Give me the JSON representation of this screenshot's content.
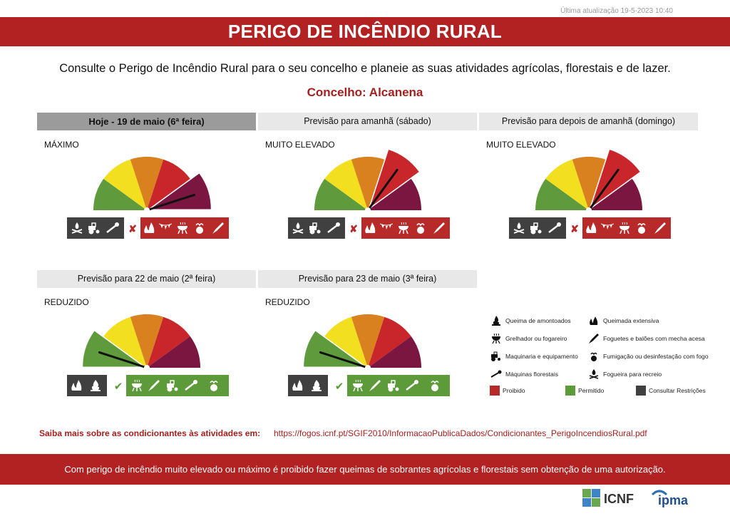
{
  "updated": "Última atualização 19-5-2023 10:40",
  "title": "PERIGO DE INCÊNDIO RURAL",
  "subtitle": "Consulte o Perigo de Incêndio Rural para o seu concelho e planeie as suas atividades agrícolas, florestais e de lazer.",
  "concelho": "Concelho: Alcanena",
  "colors": {
    "banner": "#b22222",
    "reduzido": "#5f9b3c",
    "moderado": "#f2df1f",
    "elevado": "#d9811e",
    "muito_elevado": "#c8262a",
    "maximo": "#7a1640",
    "proibido": "#b82a2a",
    "permitido": "#5c9a3a",
    "restricoes": "#404040"
  },
  "forecasts": [
    {
      "header": "Hoje - 19 de maio (6ª feira)",
      "risk_label": "MÁXIMO",
      "level": 5,
      "status": "prohibited"
    },
    {
      "header": "Previsão para amanhã (sábado)",
      "risk_label": "MUITO ELEVADO",
      "level": 4,
      "status": "prohibited"
    },
    {
      "header": "Previsão para depois de amanhã (domingo)",
      "risk_label": "MUITO ELEVADO",
      "level": 4,
      "status": "prohibited"
    },
    {
      "header": "Previsão para 22 de maio (2ª feira)",
      "risk_label": "REDUZIDO",
      "level": 1,
      "status": "allowed"
    },
    {
      "header": "Previsão para 23 de maio (3ª feira)",
      "risk_label": "REDUZIDO",
      "level": 1,
      "status": "allowed"
    }
  ],
  "legend": {
    "items": [
      {
        "label": "Queima de amontoados",
        "icon": "burning-pile-icon"
      },
      {
        "label": "Queimada extensiva",
        "icon": "extensive-burn-icon"
      },
      {
        "label": "Grelhador ou fogareiro",
        "icon": "grill-icon"
      },
      {
        "label": "Foguetes e balões com mecha acesa",
        "icon": "rocket-icon"
      },
      {
        "label": "Maquinaria e equipamento",
        "icon": "tractor-icon"
      },
      {
        "label": "Fumigação ou desinfestação com fogo",
        "icon": "fumigation-icon"
      },
      {
        "label": "Máquinas florestais",
        "icon": "chainsaw-icon"
      },
      {
        "label": "Fogueira para recreio",
        "icon": "campfire-icon"
      }
    ],
    "status": [
      {
        "label": "Proibido",
        "color": "#b82a2a"
      },
      {
        "label": "Permitido",
        "color": "#5c9a3a"
      },
      {
        "label": "Consultar Restrições",
        "color": "#404040"
      }
    ]
  },
  "more_info": {
    "label": "Saiba mais sobre as condicionantes às atividades em:",
    "url": "https://fogos.icnf.pt/SGIF2010/InformacaoPublicaDados/Condicionantes_PerigoIncendiosRural.pdf"
  },
  "footer": "Com perigo de incêndio muito elevado ou máximo é proibido fazer queimas de sobrantes agrícolas e florestais sem obtenção de uma autorização.",
  "logos": {
    "icnf": "ICNF",
    "ipma": "ipma"
  }
}
